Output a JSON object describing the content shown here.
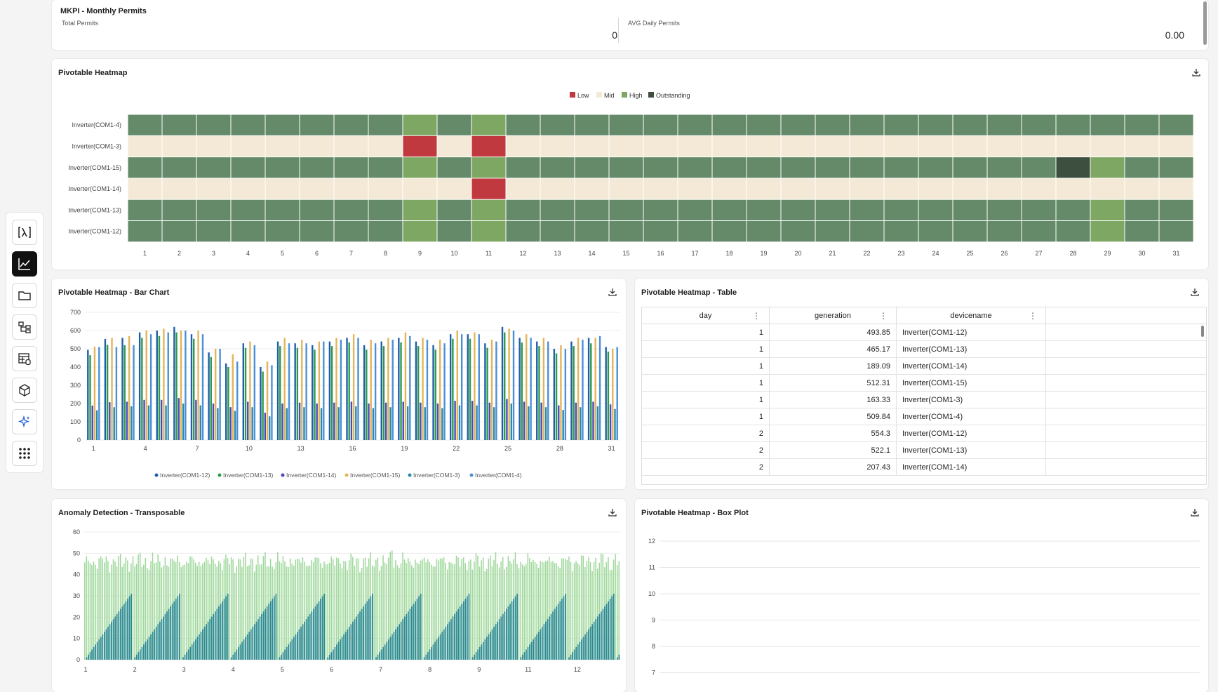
{
  "kpi": {
    "title": "MKPI - Monthly Permits",
    "total_label": "Total Permits",
    "total_value": "0",
    "avg_label": "AVG Daily Permits",
    "avg_value": "0.00"
  },
  "sidebar": {
    "items": [
      {
        "name": "lambda-icon",
        "active": false
      },
      {
        "name": "line-chart-icon",
        "active": true
      },
      {
        "name": "folder-icon",
        "active": false
      },
      {
        "name": "flow-icon",
        "active": false
      },
      {
        "name": "table-database-icon",
        "active": false
      },
      {
        "name": "cube-icon",
        "active": false
      },
      {
        "name": "sparkle-icon",
        "active": false
      },
      {
        "name": "grid-apps-icon",
        "active": false
      }
    ]
  },
  "heatmap": {
    "title": "Pivotable Heatmap",
    "chart_data": {
      "type": "heatmap",
      "rows": [
        "Inverter(COM1-4)",
        "Inverter(COM1-3)",
        "Inverter(COM1-15)",
        "Inverter(COM1-14)",
        "Inverter(COM1-13)",
        "Inverter(COM1-12)"
      ],
      "columns": [
        "1",
        "2",
        "3",
        "4",
        "5",
        "6",
        "7",
        "8",
        "9",
        "10",
        "11",
        "12",
        "13",
        "14",
        "15",
        "16",
        "17",
        "18",
        "19",
        "20",
        "21",
        "22",
        "23",
        "24",
        "25",
        "26",
        "27",
        "28",
        "29",
        "30",
        "31"
      ],
      "legend": [
        {
          "label": "Low",
          "color": "#c0393f"
        },
        {
          "label": "Mid",
          "color": "#f4e9d6"
        },
        {
          "label": "High",
          "color": "#7fa764"
        },
        {
          "label": "Outstanding",
          "color": "#3d4f3f"
        }
      ],
      "default_row_colors": [
        "#648a6a",
        "#f4e9d6",
        "#648a6a",
        "#f4e9d6",
        "#648a6a",
        "#648a6a"
      ],
      "overrides": [
        {
          "row": 0,
          "col": 9,
          "color": "#7fa764"
        },
        {
          "row": 0,
          "col": 11,
          "color": "#7fa764"
        },
        {
          "row": 1,
          "col": 9,
          "color": "#c0393f"
        },
        {
          "row": 1,
          "col": 11,
          "color": "#c0393f"
        },
        {
          "row": 2,
          "col": 9,
          "color": "#7fa764"
        },
        {
          "row": 2,
          "col": 11,
          "color": "#7fa764"
        },
        {
          "row": 2,
          "col": 28,
          "color": "#3d4f3f"
        },
        {
          "row": 2,
          "col": 29,
          "color": "#7fa764"
        },
        {
          "row": 3,
          "col": 11,
          "color": "#c0393f"
        },
        {
          "row": 4,
          "col": 9,
          "color": "#7fa764"
        },
        {
          "row": 4,
          "col": 11,
          "color": "#7fa764"
        },
        {
          "row": 4,
          "col": 29,
          "color": "#7fa764"
        },
        {
          "row": 5,
          "col": 9,
          "color": "#7fa764"
        },
        {
          "row": 5,
          "col": 11,
          "color": "#7fa764"
        },
        {
          "row": 5,
          "col": 29,
          "color": "#7fa764"
        }
      ]
    }
  },
  "bar_chart": {
    "title": "Pivotable Heatmap - Bar Chart",
    "chart_data": {
      "type": "bar",
      "categories": [
        "1",
        "2",
        "3",
        "4",
        "5",
        "6",
        "7",
        "8",
        "9",
        "10",
        "11",
        "12",
        "13",
        "14",
        "15",
        "16",
        "17",
        "18",
        "19",
        "20",
        "21",
        "22",
        "23",
        "24",
        "25",
        "26",
        "27",
        "28",
        "29",
        "30",
        "31"
      ],
      "x_tick_labels": [
        "1",
        "4",
        "7",
        "10",
        "13",
        "16",
        "19",
        "22",
        "25",
        "28",
        "31"
      ],
      "ylim": [
        0,
        700
      ],
      "yticks": [
        0,
        100,
        200,
        300,
        400,
        500,
        600,
        700
      ],
      "legend_position": "bottom",
      "series": [
        {
          "name": "Inverter(COM1-12)",
          "color": "#1f5fa8",
          "values": [
            494,
            554,
            560,
            590,
            600,
            620,
            580,
            480,
            420,
            530,
            400,
            540,
            530,
            520,
            540,
            560,
            520,
            540,
            560,
            540,
            520,
            580,
            580,
            530,
            620,
            560,
            540,
            500,
            540,
            560,
            510
          ]
        },
        {
          "name": "Inverter(COM1-13)",
          "color": "#2e9a4b",
          "values": [
            465,
            522,
            520,
            560,
            570,
            590,
            555,
            455,
            400,
            505,
            375,
            515,
            505,
            495,
            515,
            535,
            495,
            515,
            535,
            515,
            495,
            555,
            555,
            505,
            590,
            535,
            515,
            475,
            515,
            530,
            485
          ]
        },
        {
          "name": "Inverter(COM1-14)",
          "color": "#4a4ab8",
          "values": [
            189,
            207,
            210,
            220,
            220,
            230,
            220,
            200,
            180,
            210,
            150,
            200,
            205,
            200,
            205,
            210,
            200,
            205,
            210,
            205,
            200,
            215,
            215,
            205,
            225,
            210,
            205,
            190,
            205,
            210,
            195
          ]
        },
        {
          "name": "Inverter(COM1-15)",
          "color": "#e3b45b",
          "values": [
            512,
            560,
            570,
            600,
            610,
            600,
            600,
            500,
            470,
            540,
            430,
            560,
            550,
            540,
            560,
            580,
            550,
            560,
            590,
            560,
            550,
            600,
            590,
            550,
            610,
            580,
            560,
            520,
            560,
            560,
            500
          ]
        },
        {
          "name": "Inverter(COM1-3)",
          "color": "#2b8aa8",
          "values": [
            163,
            180,
            185,
            190,
            190,
            200,
            190,
            175,
            160,
            180,
            130,
            175,
            180,
            175,
            180,
            185,
            175,
            180,
            185,
            180,
            175,
            190,
            190,
            180,
            200,
            185,
            180,
            165,
            180,
            185,
            170
          ]
        },
        {
          "name": "Inverter(COM1-4)",
          "color": "#4a90d9",
          "values": [
            510,
            510,
            520,
            580,
            590,
            600,
            580,
            500,
            430,
            520,
            410,
            530,
            530,
            540,
            550,
            560,
            530,
            550,
            570,
            550,
            530,
            580,
            580,
            540,
            600,
            560,
            540,
            500,
            550,
            570,
            510
          ]
        }
      ]
    }
  },
  "table": {
    "title": "Pivotable Heatmap - Table",
    "columns": [
      "day",
      "generation",
      "devicename"
    ],
    "rows": [
      [
        "1",
        "493.85",
        "Inverter(COM1-12)"
      ],
      [
        "1",
        "465.17",
        "Inverter(COM1-13)"
      ],
      [
        "1",
        "189.09",
        "Inverter(COM1-14)"
      ],
      [
        "1",
        "512.31",
        "Inverter(COM1-15)"
      ],
      [
        "1",
        "163.33",
        "Inverter(COM1-3)"
      ],
      [
        "1",
        "509.84",
        "Inverter(COM1-4)"
      ],
      [
        "2",
        "554.3",
        "Inverter(COM1-12)"
      ],
      [
        "2",
        "522.1",
        "Inverter(COM1-13)"
      ],
      [
        "2",
        "207.43",
        "Inverter(COM1-14)"
      ]
    ]
  },
  "anomaly": {
    "title": "Anomaly Detection - Transposable",
    "chart_data": {
      "type": "bar",
      "ylim": [
        0,
        60
      ],
      "yticks": [
        0,
        10,
        20,
        30,
        40,
        50,
        60
      ],
      "x_tick_labels": [
        "1",
        "2",
        "3",
        "4",
        "5",
        "6",
        "7",
        "8",
        "9",
        "11",
        "12"
      ],
      "series": [
        {
          "name": "",
          "color": "#9fd89b",
          "pattern": "noisy",
          "base": 46,
          "count": 300
        },
        {
          "name": "",
          "color": "#2a8a8e",
          "pattern": "sawtooth",
          "peak": 31,
          "period": 27,
          "count": 300
        }
      ]
    }
  },
  "boxplot": {
    "title": "Pivotable Heatmap - Box Plot",
    "chart_data": {
      "type": "box",
      "yticks": [
        7,
        8,
        9,
        10,
        11,
        12
      ]
    }
  }
}
